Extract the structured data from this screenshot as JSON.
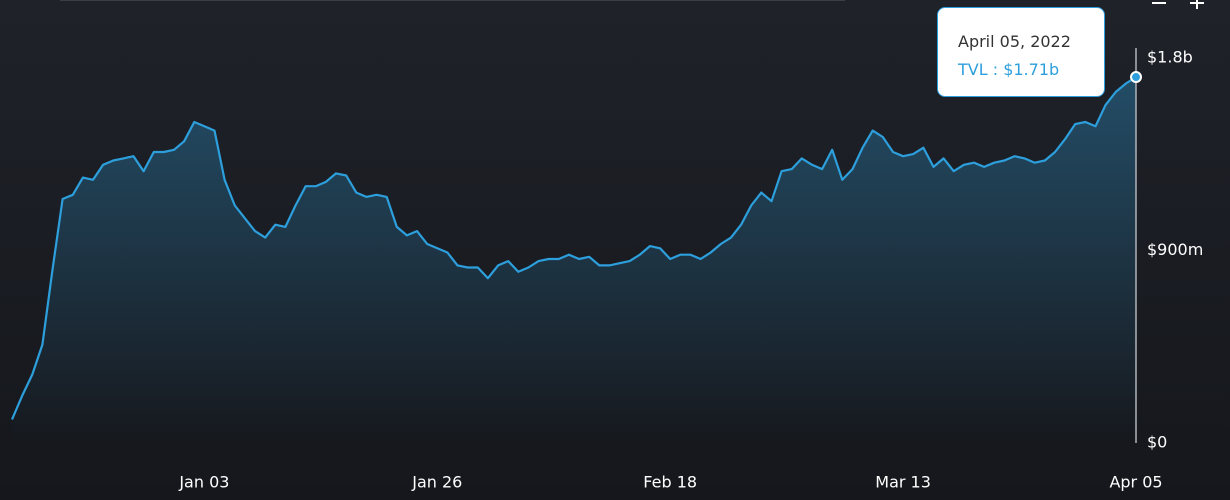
{
  "chart_data": {
    "type": "area",
    "x": [
      "Dec 15",
      "Dec 16",
      "Dec 17",
      "Dec 18",
      "Dec 19",
      "Dec 20",
      "Dec 21",
      "Dec 22",
      "Dec 23",
      "Dec 24",
      "Dec 25",
      "Dec 26",
      "Dec 27",
      "Dec 28",
      "Dec 29",
      "Dec 30",
      "Dec 31",
      "Jan 01",
      "Jan 02",
      "Jan 03",
      "Jan 04",
      "Jan 05",
      "Jan 06",
      "Jan 07",
      "Jan 08",
      "Jan 09",
      "Jan 10",
      "Jan 11",
      "Jan 12",
      "Jan 13",
      "Jan 14",
      "Jan 15",
      "Jan 16",
      "Jan 17",
      "Jan 18",
      "Jan 19",
      "Jan 20",
      "Jan 21",
      "Jan 22",
      "Jan 23",
      "Jan 24",
      "Jan 25",
      "Jan 26",
      "Jan 27",
      "Jan 28",
      "Jan 29",
      "Jan 30",
      "Jan 31",
      "Feb 01",
      "Feb 02",
      "Feb 03",
      "Feb 04",
      "Feb 05",
      "Feb 06",
      "Feb 07",
      "Feb 08",
      "Feb 09",
      "Feb 10",
      "Feb 11",
      "Feb 12",
      "Feb 13",
      "Feb 14",
      "Feb 15",
      "Feb 16",
      "Feb 17",
      "Feb 18",
      "Feb 19",
      "Feb 20",
      "Feb 21",
      "Feb 22",
      "Feb 23",
      "Feb 24",
      "Feb 25",
      "Feb 26",
      "Feb 27",
      "Feb 28",
      "Mar 01",
      "Mar 02",
      "Mar 03",
      "Mar 04",
      "Mar 05",
      "Mar 06",
      "Mar 07",
      "Mar 08",
      "Mar 09",
      "Mar 10",
      "Mar 11",
      "Mar 12",
      "Mar 13",
      "Mar 14",
      "Mar 15",
      "Mar 16",
      "Mar 17",
      "Mar 18",
      "Mar 19",
      "Mar 20",
      "Mar 21",
      "Mar 22",
      "Mar 23",
      "Mar 24",
      "Mar 25",
      "Mar 26",
      "Mar 27",
      "Mar 28",
      "Mar 29",
      "Mar 30",
      "Mar 31",
      "Apr 01",
      "Apr 02",
      "Apr 03",
      "Apr 04",
      "Apr 05"
    ],
    "values": [
      110000000,
      220000000,
      320000000,
      460000000,
      810000000,
      1140000000,
      1160000000,
      1240000000,
      1230000000,
      1300000000,
      1320000000,
      1330000000,
      1340000000,
      1270000000,
      1360000000,
      1360000000,
      1370000000,
      1410000000,
      1500000000,
      1480000000,
      1460000000,
      1230000000,
      1110000000,
      1050000000,
      990000000,
      960000000,
      1020000000,
      1010000000,
      1110000000,
      1200000000,
      1200000000,
      1220000000,
      1260000000,
      1250000000,
      1170000000,
      1150000000,
      1160000000,
      1150000000,
      1010000000,
      970000000,
      990000000,
      930000000,
      910000000,
      890000000,
      830000000,
      820000000,
      820000000,
      770000000,
      830000000,
      850000000,
      800000000,
      820000000,
      850000000,
      860000000,
      860000000,
      880000000,
      860000000,
      870000000,
      830000000,
      830000000,
      840000000,
      850000000,
      880000000,
      920000000,
      910000000,
      860000000,
      880000000,
      880000000,
      860000000,
      890000000,
      930000000,
      960000000,
      1020000000,
      1110000000,
      1170000000,
      1130000000,
      1270000000,
      1280000000,
      1330000000,
      1300000000,
      1280000000,
      1370000000,
      1230000000,
      1280000000,
      1380000000,
      1460000000,
      1430000000,
      1360000000,
      1340000000,
      1350000000,
      1380000000,
      1290000000,
      1330000000,
      1270000000,
      1300000000,
      1310000000,
      1290000000,
      1310000000,
      1320000000,
      1340000000,
      1330000000,
      1310000000,
      1320000000,
      1360000000,
      1420000000,
      1490000000,
      1500000000,
      1480000000,
      1580000000,
      1640000000,
      1680000000,
      1710000000
    ],
    "color": "#2d9fdc",
    "ylim": [
      0,
      2000000000
    ],
    "yticks": [
      {
        "value": 0,
        "label": "$0"
      },
      {
        "value": 900000000,
        "label": "$900m"
      },
      {
        "value": 1800000000,
        "label": "$1.8b"
      }
    ],
    "xticks": [
      "Jan 03",
      "Jan 26",
      "Feb 18",
      "Mar 13",
      "Apr 05"
    ],
    "tooltip": {
      "title": "April 05, 2022",
      "text": "TVL : $1.71b"
    }
  }
}
